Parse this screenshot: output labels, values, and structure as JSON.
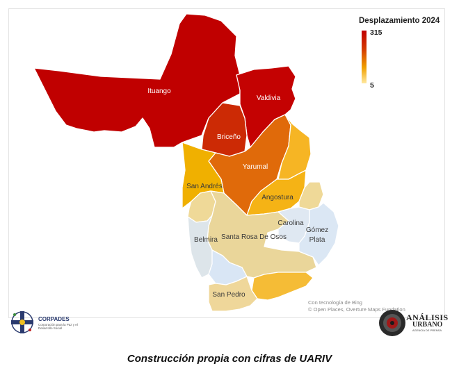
{
  "legend": {
    "title": "Desplazamiento 2024",
    "max_label": "315",
    "min_label": "5",
    "color_high": "#c00000",
    "color_low": "#ffe9a0"
  },
  "regions": {
    "ituango": {
      "name": "Ituango",
      "color": "#c00000"
    },
    "valdivia": {
      "name": "Valdivia",
      "color": "#c40202"
    },
    "briceno": {
      "name": "Briceño",
      "color": "#cc2a05"
    },
    "yarumal": {
      "name": "Yarumal",
      "color": "#e06a0a"
    },
    "san_andres": {
      "name": "San Andrés",
      "color": "#f0b000"
    },
    "angostura": {
      "name": "Angostura",
      "color": "#f5b315"
    },
    "campamento": {
      "name": "",
      "color": "#f6b524"
    },
    "entrerrios": {
      "name": "",
      "color": "#efd998"
    },
    "guadalupe": {
      "name": "",
      "color": "#efd998"
    },
    "santa_rosa": {
      "name": "Santa Rosa De Osos",
      "color": "#ead69a"
    },
    "carolina": {
      "name": "Carolina",
      "color": "#dfe8f2"
    },
    "gomez_plata": {
      "name": "Gómez Plata",
      "color": "#dbe7f4"
    },
    "belmira": {
      "name": "Belmira",
      "color": "#dde5ea"
    },
    "san_pedro": {
      "name": "San Pedro",
      "color": "#efd79a"
    },
    "don_matias": {
      "name": "",
      "color": "#d9e6f5"
    },
    "yolombo_area": {
      "name": "",
      "color": "#f5bc36"
    }
  },
  "attribution": {
    "line1": "Con tecnología de Bing",
    "line2": "© Open Places, Overture Maps Fundation"
  },
  "logos": {
    "left_name": "CORPADES",
    "left_sub": "Corporación para la Paz y el Desarrollo Social",
    "right_name1": "ANÁLISIS",
    "right_name2": "URBANO",
    "right_sub": "AGENCIA DE PRENSA"
  },
  "caption": "Construcción propia con cifras de UARIV"
}
